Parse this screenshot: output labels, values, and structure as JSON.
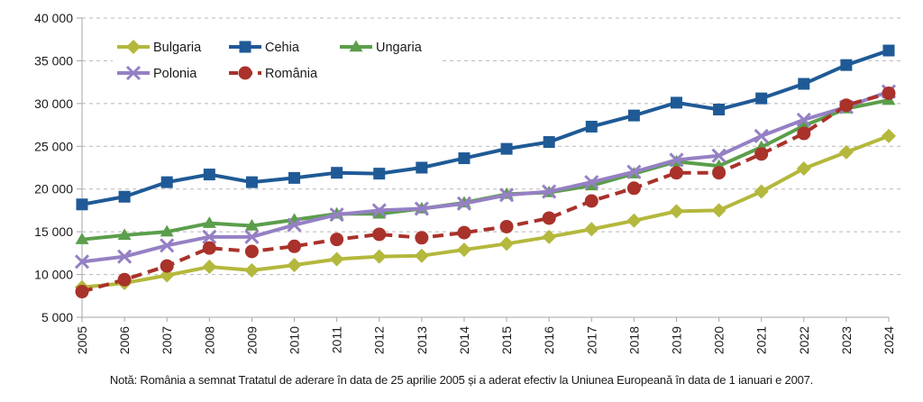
{
  "chart_data": {
    "type": "line",
    "title": "",
    "xlabel": "",
    "ylabel": "",
    "ylim": [
      5000,
      40000
    ],
    "yticks": [
      5000,
      10000,
      15000,
      20000,
      25000,
      30000,
      35000,
      40000
    ],
    "ytick_labels": [
      "5 000",
      "10 000",
      "15 000",
      "20 000",
      "25 000",
      "30 000",
      "35 000",
      "40 000"
    ],
    "grid": "horizontal dashed",
    "legend_position": "top-left",
    "x": [
      "2005",
      "2006",
      "2007",
      "2008",
      "2009",
      "2010",
      "2011",
      "2012",
      "2013",
      "2014",
      "2015",
      "2016",
      "2017",
      "2018",
      "2019",
      "2020",
      "2021",
      "2022",
      "2023",
      "2024"
    ],
    "series": [
      {
        "name": "Bulgaria",
        "color": "#B4B83C",
        "marker": "diamond",
        "dashed": false,
        "values": [
          8500,
          9000,
          9900,
          10900,
          10500,
          11100,
          11800,
          12100,
          12200,
          12900,
          13600,
          14400,
          15300,
          16300,
          17400,
          17500,
          19700,
          22400,
          24300,
          26200
        ]
      },
      {
        "name": "Cehia",
        "color": "#1F5A96",
        "marker": "square",
        "dashed": false,
        "values": [
          18200,
          19100,
          20800,
          21700,
          20800,
          21300,
          21900,
          21800,
          22500,
          23600,
          24700,
          25500,
          27300,
          28600,
          30100,
          29300,
          30600,
          32300,
          34500,
          36200
        ]
      },
      {
        "name": "Ungaria",
        "color": "#5B9E4B",
        "marker": "triangle",
        "dashed": false,
        "values": [
          14100,
          14600,
          15000,
          16000,
          15700,
          16400,
          17100,
          17100,
          17700,
          18400,
          19400,
          19600,
          20400,
          21800,
          23200,
          22700,
          24900,
          27400,
          29400,
          30400
        ]
      },
      {
        "name": "Polonia",
        "color": "#9580C4",
        "marker": "x",
        "dashed": false,
        "values": [
          11500,
          12100,
          13400,
          14400,
          14400,
          15800,
          17000,
          17500,
          17700,
          18300,
          19300,
          19700,
          20800,
          22000,
          23400,
          23900,
          26200,
          28100,
          29600,
          31400
        ]
      },
      {
        "name": "România",
        "color": "#A9322B",
        "marker": "circle",
        "dashed": true,
        "values": [
          8000,
          9400,
          11000,
          13100,
          12700,
          13300,
          14100,
          14700,
          14300,
          14900,
          15600,
          16600,
          18600,
          20100,
          21900,
          21900,
          24100,
          26500,
          29800,
          31200
        ]
      }
    ],
    "legend_rows": [
      [
        "Bulgaria",
        "Cehia",
        "Ungaria"
      ],
      [
        "Polonia",
        "România"
      ]
    ],
    "note": "Notă: România a semnat Tratatul de aderare în data de 25 aprilie 2005 și a aderat efectiv la Uniunea Europeană în data de 1 ianuari e 2007."
  }
}
